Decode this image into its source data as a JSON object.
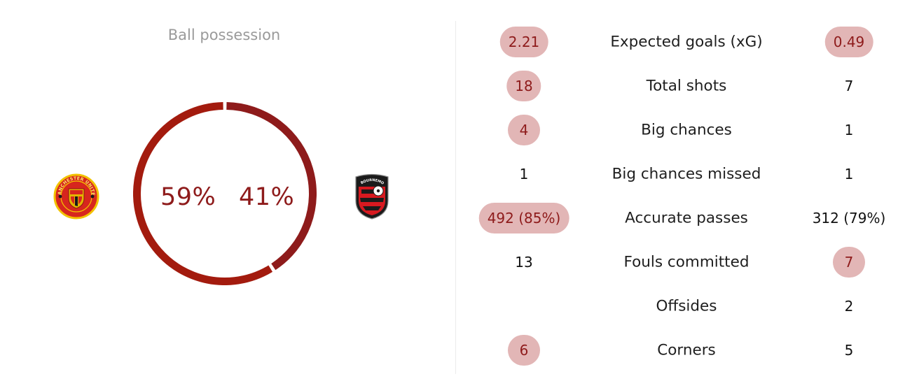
{
  "possession": {
    "title": "Ball possession",
    "home_pct_label": "59%",
    "away_pct_label": "41%",
    "home_share": 0.59,
    "away_share": 0.41,
    "home_color": "#a31b0e",
    "away_color": "#8e1b1b"
  },
  "teams": {
    "home": {
      "crest_icon": "manchester-united-crest-icon",
      "crest_text": "MANCHESTER UNITED"
    },
    "away": {
      "crest_icon": "bournemouth-crest-icon",
      "crest_text": "AFC BOURNEMOUTH"
    }
  },
  "colors": {
    "highlight_bg": "#e2b6b6",
    "highlight_text": "#8e1b1b",
    "divider": "#ececec"
  },
  "stats": [
    {
      "label": "Expected goals (xG)",
      "home": "2.21",
      "away": "0.49",
      "home_hl": true,
      "away_hl": true
    },
    {
      "label": "Total shots",
      "home": "18",
      "away": "7",
      "home_hl": true,
      "away_hl": false
    },
    {
      "label": "Big chances",
      "home": "4",
      "away": "1",
      "home_hl": true,
      "away_hl": false
    },
    {
      "label": "Big chances missed",
      "home": "1",
      "away": "1",
      "home_hl": false,
      "away_hl": false
    },
    {
      "label": "Accurate passes",
      "home": "492 (85%)",
      "away": "312 (79%)",
      "home_hl": true,
      "away_hl": false
    },
    {
      "label": "Fouls committed",
      "home": "13",
      "away": "7",
      "home_hl": false,
      "away_hl": true
    },
    {
      "label": "Offsides",
      "home": "",
      "away": "2",
      "home_hl": false,
      "away_hl": false
    },
    {
      "label": "Corners",
      "home": "6",
      "away": "5",
      "home_hl": true,
      "away_hl": false
    }
  ]
}
